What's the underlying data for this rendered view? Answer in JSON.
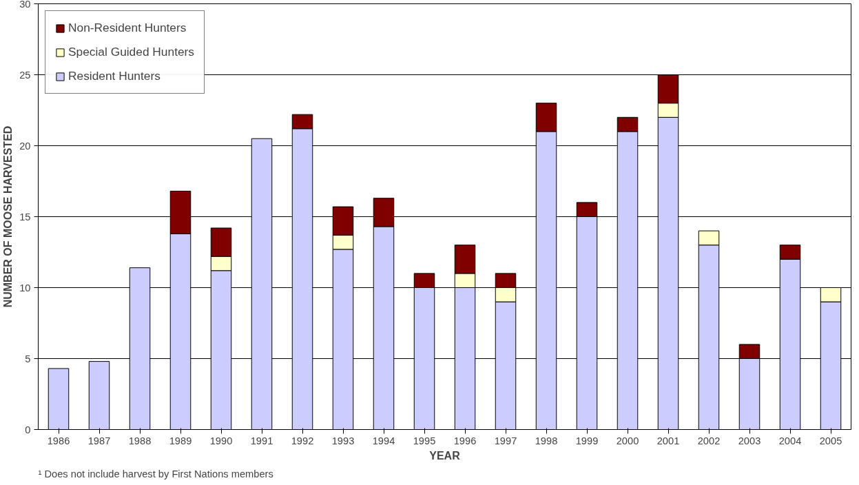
{
  "chart_data": {
    "type": "bar",
    "stacked": true,
    "xlabel": "YEAR",
    "ylabel": "NUMBER OF MOOSE HARVESTED",
    "categories": [
      "1986",
      "1987",
      "1988",
      "1989",
      "1990",
      "1991",
      "1992",
      "1993",
      "1994",
      "1995",
      "1996",
      "1997",
      "1998",
      "1999",
      "2000",
      "2001",
      "2002",
      "2003",
      "2004",
      "2005"
    ],
    "series": [
      {
        "name": "Resident Hunters",
        "color": "#ccccff",
        "values": [
          4.3,
          4.8,
          11.4,
          13.8,
          11.2,
          20.5,
          21.2,
          12.7,
          14.3,
          10,
          10,
          9,
          21,
          15,
          21,
          22,
          13,
          5,
          12,
          9
        ]
      },
      {
        "name": "Special Guided Hunters",
        "color": "#ffffcc",
        "values": [
          null,
          null,
          null,
          null,
          1,
          null,
          null,
          1,
          null,
          null,
          1,
          1,
          null,
          null,
          null,
          1,
          1,
          null,
          null,
          1
        ]
      },
      {
        "name": "Non-Resident Hunters",
        "color": "#800000",
        "values": [
          null,
          null,
          null,
          3,
          2,
          null,
          1,
          2,
          2,
          1,
          2,
          1,
          2,
          1,
          1,
          2,
          null,
          1,
          1,
          null
        ]
      }
    ],
    "ylim": [
      0,
      30
    ],
    "yticks": [
      0,
      5,
      10,
      15,
      20,
      25,
      30
    ],
    "grid": "y",
    "legend": "top left",
    "annotations": [
      "¹ Does not include harvest by First Nations members"
    ]
  }
}
